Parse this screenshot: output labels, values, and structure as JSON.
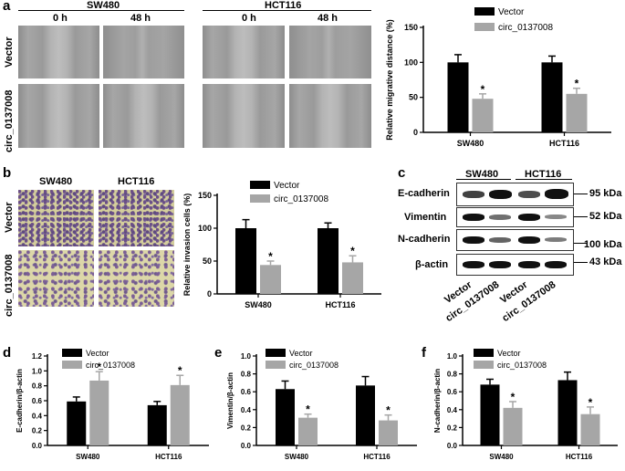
{
  "panels": {
    "a": {
      "letter": "a",
      "cell_lines": [
        "SW480",
        "HCT116"
      ],
      "times": [
        "0 h",
        "48 h",
        "0 h",
        "48 h"
      ],
      "rows": [
        "Vector",
        "circ_0137008"
      ]
    },
    "b": {
      "letter": "b",
      "cell_lines": [
        "SW480",
        "HCT116"
      ],
      "rows": [
        "Vector",
        "circ_0137008"
      ]
    },
    "c": {
      "letter": "c",
      "cell_lines": [
        "SW480",
        "HCT116"
      ],
      "proteins": [
        "E-cadherin",
        "Vimentin",
        "N-cadherin",
        "β-actin"
      ],
      "sizes": [
        "95 kDa",
        "52 kDa",
        "100 kDa",
        "43 kDa"
      ],
      "lanes": [
        "Vector",
        "circ_0137008",
        "Vector",
        "circ_0137008"
      ]
    },
    "d": {
      "letter": "d"
    },
    "e": {
      "letter": "e"
    },
    "f": {
      "letter": "f"
    }
  },
  "chart_data": [
    {
      "id": "a",
      "type": "bar",
      "categories": [
        "SW480",
        "HCT116"
      ],
      "series": [
        {
          "name": "Vector",
          "values": [
            100,
            100
          ],
          "errors": [
            11,
            9
          ]
        },
        {
          "name": "circ_0137008",
          "values": [
            48,
            55
          ],
          "errors": [
            7,
            8
          ]
        }
      ],
      "ylabel": "Relative migrative distance (%)",
      "ylim": [
        0,
        150
      ],
      "yticks": [
        0,
        50,
        100,
        150
      ],
      "yticklabels": [
        "0",
        "50",
        "100",
        "150"
      ],
      "significance": [
        "",
        "*"
      ],
      "legend": "top-right",
      "colors": [
        "#000000",
        "#a6a6a6"
      ]
    },
    {
      "id": "b",
      "type": "bar",
      "categories": [
        "SW480",
        "HCT116"
      ],
      "series": [
        {
          "name": "Vector",
          "values": [
            100,
            100
          ],
          "errors": [
            13,
            8
          ]
        },
        {
          "name": "circ_0137008",
          "values": [
            44,
            48
          ],
          "errors": [
            6,
            10
          ]
        }
      ],
      "ylabel": "Relative invasion cells (%)",
      "ylim": [
        0,
        150
      ],
      "yticks": [
        0,
        50,
        100,
        150
      ],
      "yticklabels": [
        "0",
        "50",
        "100",
        "150"
      ],
      "significance": [
        "",
        "*"
      ],
      "legend": "top-right",
      "colors": [
        "#000000",
        "#a6a6a6"
      ]
    },
    {
      "id": "d",
      "type": "bar",
      "categories": [
        "SW480",
        "HCT116"
      ],
      "series": [
        {
          "name": "Vector",
          "values": [
            0.59,
            0.54
          ],
          "errors": [
            0.06,
            0.05
          ]
        },
        {
          "name": "circ_0137008",
          "values": [
            0.87,
            0.81
          ],
          "errors": [
            0.12,
            0.13
          ]
        }
      ],
      "ylabel": "E-cadherin/β-actin",
      "ylim": [
        0,
        1.2
      ],
      "yticks": [
        0,
        0.2,
        0.4,
        0.6,
        0.8,
        1.0,
        1.2
      ],
      "yticklabels": [
        "0.0",
        "0.2",
        "0.4",
        "0.6",
        "0.8",
        "1.0",
        "1.2"
      ],
      "significance": [
        "",
        "*"
      ],
      "legend": "top-left",
      "colors": [
        "#000000",
        "#a6a6a6"
      ]
    },
    {
      "id": "e",
      "type": "bar",
      "categories": [
        "SW480",
        "HCT116"
      ],
      "series": [
        {
          "name": "Vector",
          "values": [
            0.63,
            0.67
          ],
          "errors": [
            0.09,
            0.1
          ]
        },
        {
          "name": "circ_0137008",
          "values": [
            0.31,
            0.28
          ],
          "errors": [
            0.04,
            0.06
          ]
        }
      ],
      "ylabel": "Vimentin/β-actin",
      "ylim": [
        0,
        1.0
      ],
      "yticks": [
        0,
        0.2,
        0.4,
        0.6,
        0.8,
        1.0
      ],
      "yticklabels": [
        "0.0",
        "0.2",
        "0.4",
        "0.6",
        "0.8",
        "1.0"
      ],
      "significance": [
        "",
        "*"
      ],
      "legend": "top-left",
      "colors": [
        "#000000",
        "#a6a6a6"
      ]
    },
    {
      "id": "f",
      "type": "bar",
      "categories": [
        "SW480",
        "HCT116"
      ],
      "series": [
        {
          "name": "Vector",
          "values": [
            0.68,
            0.73
          ],
          "errors": [
            0.06,
            0.09
          ]
        },
        {
          "name": "circ_0137008",
          "values": [
            0.42,
            0.35
          ],
          "errors": [
            0.07,
            0.08
          ]
        }
      ],
      "ylabel": "N-cadherin/β-actin",
      "ylim": [
        0,
        1.0
      ],
      "yticks": [
        0,
        0.2,
        0.4,
        0.6,
        0.8,
        1.0
      ],
      "yticklabels": [
        "0.0",
        "0.2",
        "0.4",
        "0.6",
        "0.8",
        "1.0"
      ],
      "significance": [
        "",
        "*"
      ],
      "legend": "top-left",
      "colors": [
        "#000000",
        "#a6a6a6"
      ]
    }
  ]
}
